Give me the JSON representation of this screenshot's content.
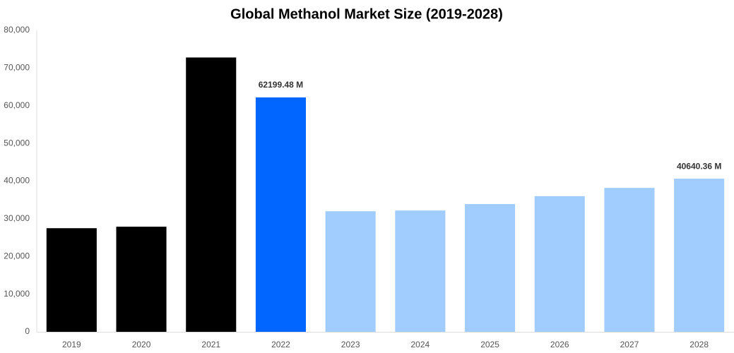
{
  "chart_data": {
    "type": "bar",
    "title": "Global Methanol Market Size (2019-2028)",
    "categories": [
      "2019",
      "2020",
      "2021",
      "2022",
      "2023",
      "2024",
      "2025",
      "2026",
      "2027",
      "2028"
    ],
    "values": [
      27500,
      27900,
      72800,
      62199.48,
      32000,
      32200,
      33900,
      36000,
      38200,
      40640.36
    ],
    "value_labels": [
      null,
      null,
      null,
      "62199.48 M",
      null,
      null,
      null,
      null,
      null,
      "40640.36 M"
    ],
    "colors": [
      "#000000",
      "#000000",
      "#000000",
      "#0066ff",
      "#a0cdfd",
      "#a0cdfd",
      "#a0cdfd",
      "#a0cdfd",
      "#a0cdfd",
      "#a0cdfd"
    ],
    "ylim": [
      0,
      80000
    ],
    "yticks": [
      0,
      {
        "value": 10000,
        "label": "10,000"
      },
      {
        "value": 20000,
        "label": "20,000"
      },
      {
        "value": 30000,
        "label": "30,000"
      },
      {
        "value": 40000,
        "label": "40,000"
      },
      {
        "value": 50000,
        "label": "50,000"
      },
      {
        "value": 60000,
        "label": "60,000"
      },
      {
        "value": 70000,
        "label": "70,000"
      },
      {
        "value": 80000,
        "label": "80,000"
      }
    ],
    "grid": false
  }
}
